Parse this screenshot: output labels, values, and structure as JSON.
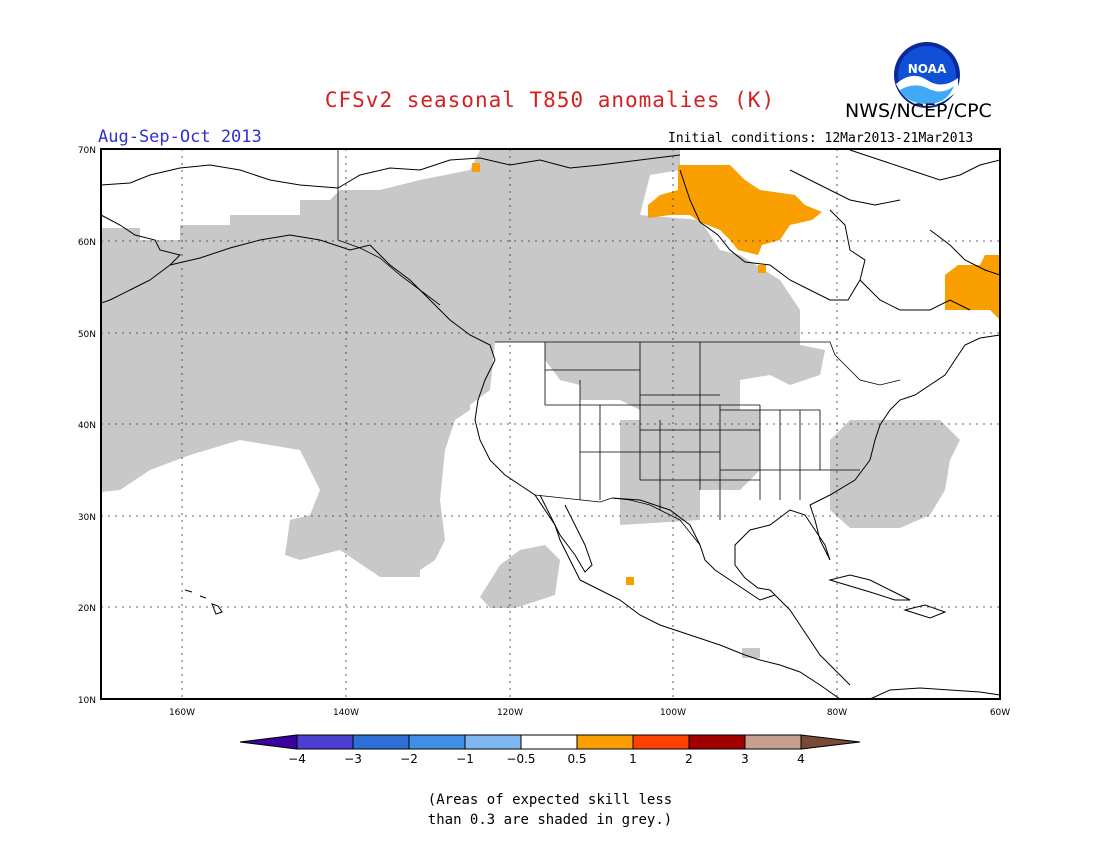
{
  "header": {
    "title": "CFSv2 seasonal T850 anomalies (K)",
    "agency": "NWS/NCEP/CPC",
    "logo_text": "NOAA",
    "season": "Aug-Sep-Oct 2013",
    "initial_conditions": "Initial conditions: 12Mar2013-21Mar2013"
  },
  "map": {
    "lat_labels": [
      "70N",
      "60N",
      "50N",
      "40N",
      "30N",
      "20N",
      "10N"
    ],
    "lon_labels": [
      "160W",
      "140W",
      "120W",
      "100W",
      "80W",
      "60W"
    ],
    "lat_range": [
      10,
      70
    ],
    "lon_range": [
      -171,
      -60
    ],
    "grid": true
  },
  "colorbar": {
    "bins": [
      {
        "color": "#3a00a0"
      },
      {
        "color": "#4a3fd0"
      },
      {
        "color": "#2d6fd6"
      },
      {
        "color": "#3f8fe6"
      },
      {
        "color": "#7fb7f0"
      },
      {
        "color": "#ffffff"
      },
      {
        "color": "#f9a000"
      },
      {
        "color": "#ff4000"
      },
      {
        "color": "#a00000"
      },
      {
        "color": "#c8a090"
      },
      {
        "color": "#7a4a38"
      }
    ],
    "tick_labels": [
      "−4",
      "−3",
      "−2",
      "−1",
      "−0.5",
      "0.5",
      "1",
      "2",
      "3",
      "4"
    ]
  },
  "notes": {
    "line1": "(Areas of expected skill less",
    "line2": "than 0.3 are shaded in grey.)"
  },
  "colors": {
    "grey_low_skill": "#c8c8c8",
    "positive_anomaly": "#f9a000",
    "title": "#d42020",
    "season": "#3030d0"
  }
}
